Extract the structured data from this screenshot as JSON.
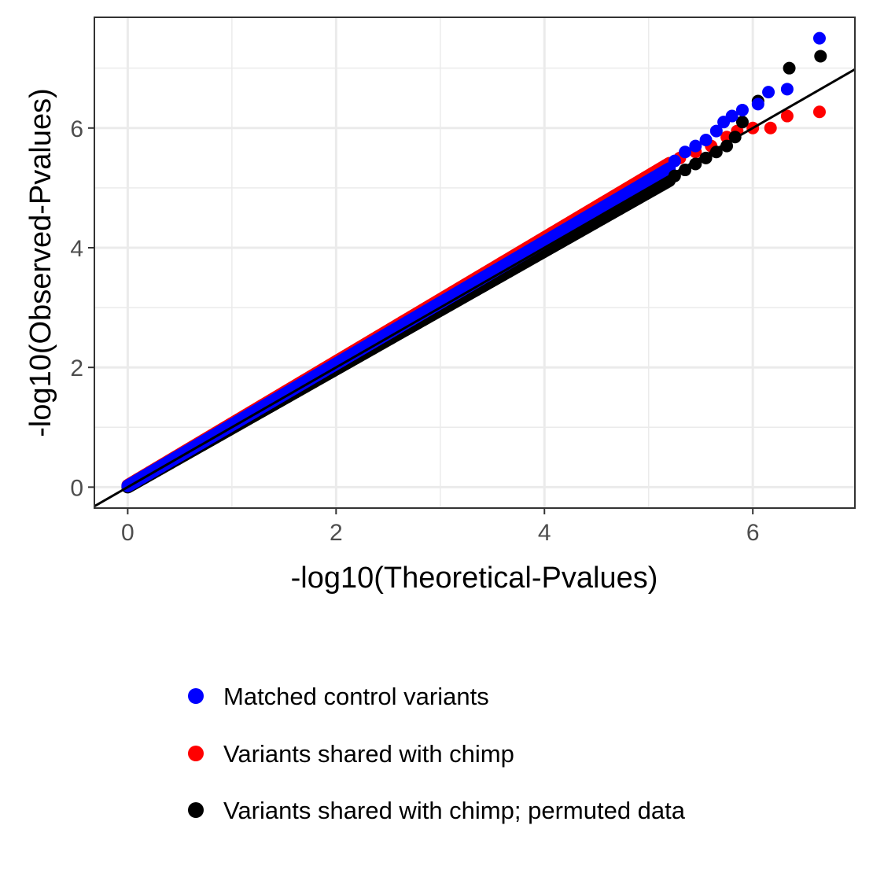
{
  "chart_data": {
    "type": "scatter",
    "title": "",
    "xlabel": "-log10(Theoretical-Pvalues)",
    "ylabel": "-log10(Observed-Pvalues)",
    "xlim": [
      -0.32,
      6.98
    ],
    "ylim": [
      -0.35,
      7.85
    ],
    "xticks": [
      0,
      2,
      4,
      6
    ],
    "yticks": [
      0,
      2,
      4,
      6
    ],
    "xtick_labels": [
      "0",
      "2",
      "4",
      "6"
    ],
    "ytick_labels": [
      "0",
      "2",
      "4",
      "6"
    ],
    "grid": true,
    "legend_position": "bottom",
    "reference_line": {
      "slope": 1,
      "intercept": 0,
      "color": "#000000"
    },
    "series": [
      {
        "name": "Matched control variants",
        "color": "#0000ff",
        "main_trend": {
          "x_start": 0,
          "x_end": 5.2,
          "slope": 1.02,
          "intercept": 0.02
        },
        "x": [
          5.25,
          5.35,
          5.45,
          5.55,
          5.65,
          5.72,
          5.8,
          5.9,
          6.05,
          6.15,
          6.33,
          6.64
        ],
        "y": [
          5.45,
          5.6,
          5.7,
          5.8,
          5.95,
          6.1,
          6.2,
          6.3,
          6.4,
          6.6,
          6.65,
          7.5
        ]
      },
      {
        "name": "Variants shared with chimp",
        "color": "#ff0000",
        "main_trend": {
          "x_start": 0,
          "x_end": 5.2,
          "slope": 1.035,
          "intercept": 0.03
        },
        "x": [
          5.3,
          5.45,
          5.6,
          5.75,
          5.85,
          6.0,
          6.17,
          6.33,
          6.64
        ],
        "y": [
          5.5,
          5.6,
          5.7,
          5.85,
          5.95,
          6.0,
          6.0,
          6.2,
          6.27
        ]
      },
      {
        "name": "Variants shared with chimp; permuted data",
        "color": "#000000",
        "main_trend": {
          "x_start": 0,
          "x_end": 5.2,
          "slope": 0.985,
          "intercept": 0.0
        },
        "x": [
          5.25,
          5.35,
          5.45,
          5.55,
          5.65,
          5.75,
          5.83,
          5.9,
          6.05,
          6.35,
          6.65
        ],
        "y": [
          5.2,
          5.3,
          5.4,
          5.5,
          5.6,
          5.7,
          5.85,
          6.1,
          6.45,
          7.0,
          7.2
        ]
      }
    ]
  }
}
